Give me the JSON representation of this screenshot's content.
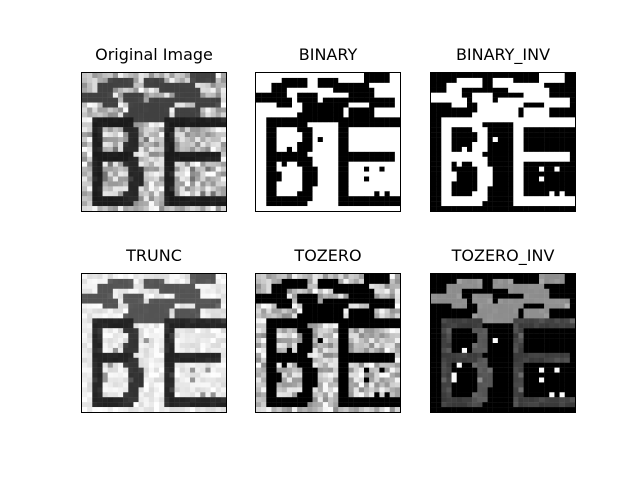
{
  "figure": {
    "panels": [
      {
        "title": "Original Image",
        "variant": "original"
      },
      {
        "title": "BINARY",
        "variant": "binary"
      },
      {
        "title": "BINARY_INV",
        "variant": "binary_inv"
      },
      {
        "title": "TRUNC",
        "variant": "trunc"
      },
      {
        "title": "TOZERO",
        "variant": "tozero"
      },
      {
        "title": "TOZERO_INV",
        "variant": "tozero_inv"
      }
    ],
    "colors": {
      "background": "#ffffff",
      "frame": "#000000",
      "text": "#000000"
    }
  }
}
